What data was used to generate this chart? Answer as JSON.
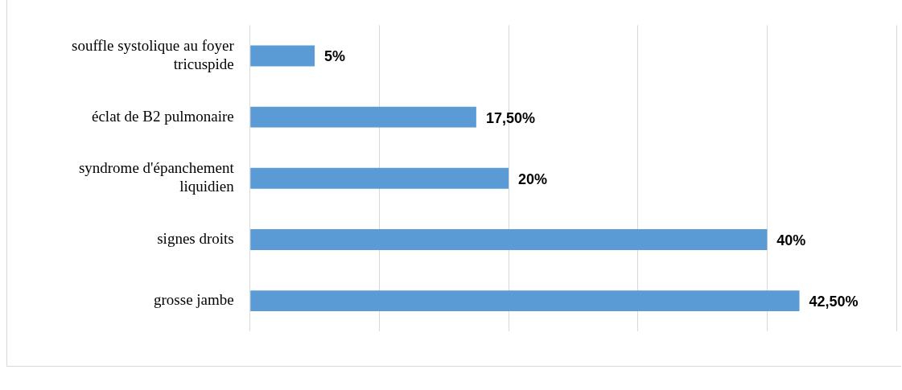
{
  "chart_data": {
    "type": "bar",
    "orientation": "horizontal",
    "categories": [
      "souffle systolique au foyer tricuspide",
      "éclat de B2 pulmonaire",
      "syndrome d'épanchement liquidien",
      "signes droits",
      "grosse jambe"
    ],
    "values": [
      5,
      17.5,
      20,
      40,
      42.5
    ],
    "value_labels": [
      "5%",
      "17,50%",
      "20%",
      "40%",
      "42,50%"
    ],
    "color": "#5b9bd5",
    "xlim": [
      0,
      50
    ],
    "xticks": [
      {
        "value": 0,
        "label": null
      },
      {
        "value": 10,
        "label": null
      },
      {
        "value": 20,
        "label": null
      },
      {
        "value": 30,
        "label": null
      },
      {
        "value": 40,
        "label": null
      },
      {
        "value": 50,
        "label": null
      }
    ],
    "grid": "x",
    "tick_labels": "y",
    "legend": false
  }
}
